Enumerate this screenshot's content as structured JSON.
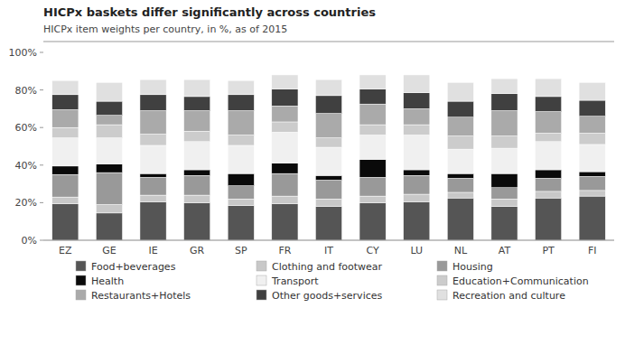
{
  "chart_data": {
    "type": "bar",
    "title": "HICPx baskets differ significantly across countries",
    "subtitle": "HICPx item weights per country, in %, as of 2015",
    "stacked": true,
    "grid": false,
    "legend": "bottom",
    "categories": [
      "EZ",
      "GE",
      "IE",
      "GR",
      "SP",
      "FR",
      "IT",
      "CY",
      "LU",
      "NL",
      "AT",
      "PT",
      "FI"
    ],
    "series": [
      {
        "name": "Food+beverages",
        "color": "#555555",
        "values": [
          19.5,
          14.5,
          20.5,
          20.0,
          18.5,
          19.5,
          18.0,
          20.0,
          20.5,
          22.5,
          18.0,
          22.5,
          23.5
        ]
      },
      {
        "name": "Clothing and footwear",
        "color": "#c8c8c8",
        "values": [
          3.5,
          4.5,
          3.5,
          4.0,
          3.5,
          4.0,
          4.0,
          3.5,
          4.0,
          3.0,
          4.0,
          3.5,
          3.0
        ]
      },
      {
        "name": "Housing",
        "color": "#999999",
        "values": [
          12.0,
          17.0,
          9.5,
          10.5,
          7.0,
          12.0,
          10.0,
          10.0,
          10.0,
          7.5,
          6.0,
          7.0,
          7.5
        ]
      },
      {
        "name": "Health",
        "color": "#0a0a0a",
        "values": [
          4.5,
          4.5,
          2.0,
          3.0,
          6.5,
          5.5,
          2.5,
          9.5,
          3.0,
          2.5,
          7.5,
          4.5,
          2.5
        ]
      },
      {
        "name": "Transport",
        "color": "#f0f0f0",
        "values": [
          15.0,
          14.0,
          15.0,
          15.0,
          15.0,
          16.5,
          15.0,
          13.0,
          18.5,
          13.0,
          13.5,
          15.0,
          14.5
        ]
      },
      {
        "name": "Education+Communication",
        "color": "#cccccc",
        "values": [
          5.5,
          7.0,
          6.0,
          5.5,
          5.5,
          5.5,
          5.0,
          5.5,
          5.5,
          7.0,
          6.5,
          4.5,
          6.0
        ]
      },
      {
        "name": "Restaurants+Hotels",
        "color": "#aaaaaa",
        "values": [
          9.5,
          5.0,
          12.5,
          11.0,
          13.0,
          8.5,
          13.0,
          11.0,
          8.5,
          10.0,
          13.5,
          11.5,
          9.0
        ]
      },
      {
        "name": "Other goods+services",
        "color": "#404040",
        "values": [
          8.0,
          7.5,
          8.5,
          7.5,
          8.5,
          9.0,
          9.5,
          8.0,
          8.5,
          8.5,
          9.0,
          8.0,
          8.5
        ]
      },
      {
        "name": "Recreation and culture",
        "color": "#e0e0e0",
        "values": [
          7.5,
          10.0,
          8.0,
          9.0,
          7.5,
          7.5,
          8.5,
          7.5,
          9.5,
          10.0,
          8.0,
          9.5,
          9.5
        ]
      }
    ],
    "ylim": [
      0,
      100
    ],
    "yticks": [
      {
        "value": 0,
        "label": "0%"
      },
      {
        "value": 20,
        "label": "20%"
      },
      {
        "value": 40,
        "label": "40%"
      },
      {
        "value": 60,
        "label": "60%"
      },
      {
        "value": 80,
        "label": "80%"
      },
      {
        "value": 100,
        "label": "100%"
      }
    ]
  }
}
